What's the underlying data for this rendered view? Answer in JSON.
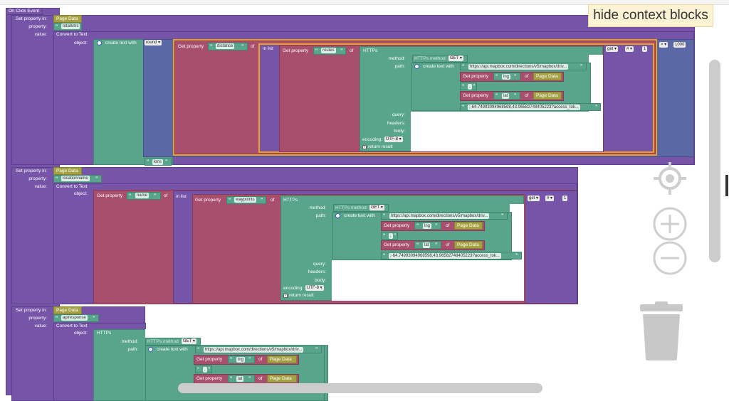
{
  "context_button": {
    "label": "hide context blocks"
  },
  "event": {
    "label": "On Click Event"
  },
  "blocks": {
    "set_property_in": "Set property in:",
    "property_label": "property:",
    "value_label": "value:",
    "page_data": "Page Data",
    "convert_to_text": "Convert to Text",
    "object_label": "object:",
    "create_text_with": "create text with",
    "round": "round",
    "get_property": "Get property",
    "of": "of",
    "in_list": "in list",
    "https": "HTTPs",
    "method_label": "method:",
    "https_method": "HTTPs method",
    "get_method": "GET",
    "path_label": "path:",
    "query_label": "query:",
    "headers_label": "headers:",
    "body_label": "body:",
    "encoding_label": "encoding:",
    "encoding_value": "UTF-8",
    "return_result": "return result",
    "get_list": "get",
    "hash": "#",
    "index": "1",
    "multiply": "×",
    "thousand": "1000",
    "api_url": "https://api.mapbox.com/directions/v5/mapbox/driv...",
    "coords": ";-64.74993094968598,43.96582748405223?access_tok...",
    "comma": ",",
    "lng": "lng",
    "lat": "lat",
    "quote_open": "“",
    "quote_close": "”"
  },
  "group1": {
    "property": "totalkms",
    "get_key": "distance",
    "list_key": "routes",
    "suffix": "kms"
  },
  "group2": {
    "property": "locationname",
    "get_key": "name",
    "list_key": "waypoints"
  },
  "group3": {
    "property": "apiresponse"
  },
  "icons": [
    "target-icon",
    "zoom-in-icon",
    "zoom-out-icon",
    "trash-icon",
    "gear-icon",
    "dropdown-arrow-icon",
    "checkbox-icon"
  ]
}
